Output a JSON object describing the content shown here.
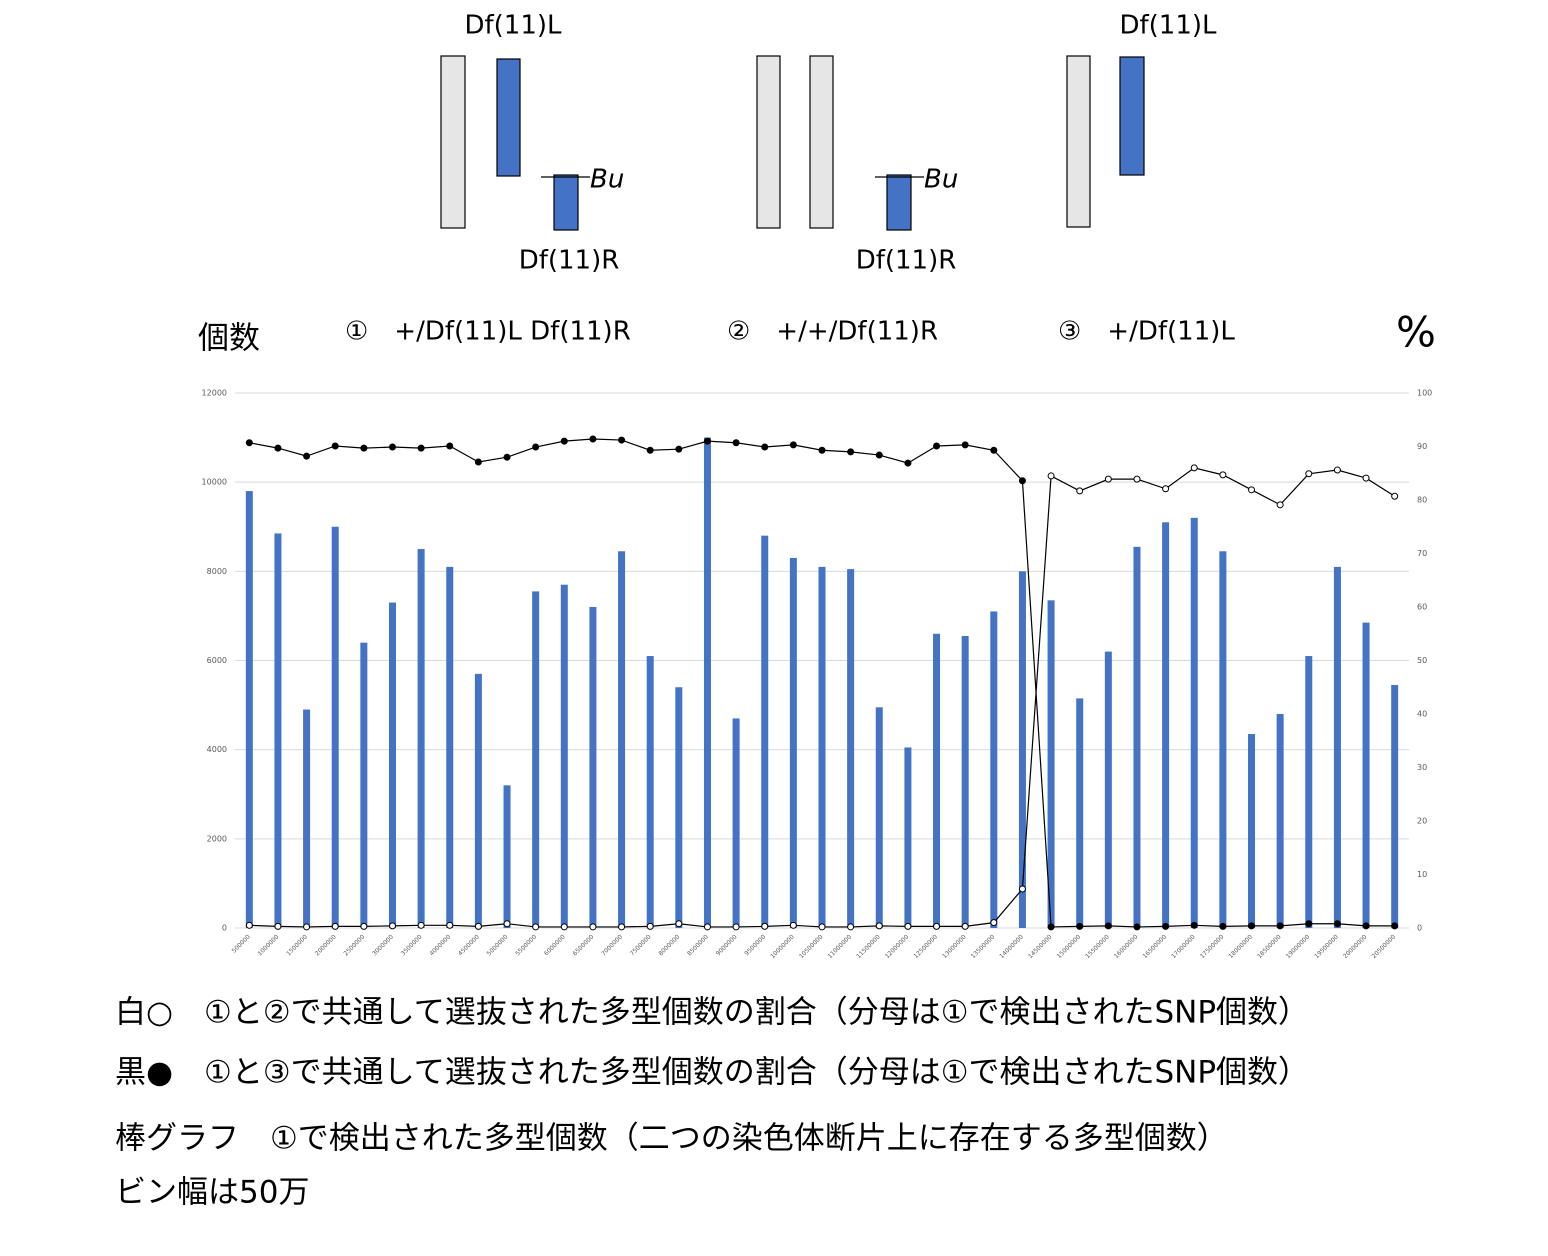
{
  "diagram": {
    "groups": [
      {
        "top_label": "Df(11)L",
        "marker": "Bu",
        "bottom_label": "Df(11)R"
      },
      {
        "marker": "Bu",
        "bottom_label": "Df(11)R"
      },
      {
        "top_label": "Df(11)L"
      }
    ]
  },
  "chart_data": {
    "type": "bar",
    "y_axis_label": "個数",
    "y2_axis_label": "%",
    "headers": [
      "①　+/Df(11)L Df(11)R",
      "②　+/+/Df(11)R",
      "③　+/Df(11)L"
    ],
    "categories": [
      "500000",
      "1000000",
      "1500000",
      "2000000",
      "2500000",
      "3000000",
      "3500000",
      "4000000",
      "4500000",
      "5000000",
      "5500000",
      "6000000",
      "6500000",
      "7000000",
      "7500000",
      "8000000",
      "8500000",
      "9000000",
      "9500000",
      "10000000",
      "10500000",
      "11000000",
      "11500000",
      "12000000",
      "12500000",
      "13000000",
      "13500000",
      "14000000",
      "14500000",
      "15000000",
      "15500000",
      "16000000",
      "16500000",
      "17000000",
      "17500000",
      "18000000",
      "18500000",
      "19000000",
      "19500000",
      "20000000",
      "20500000"
    ],
    "series": [
      {
        "type": "bar",
        "color": "#4472c4",
        "values": [
          9800,
          8850,
          4900,
          9000,
          6400,
          7300,
          8500,
          8100,
          5700,
          3200,
          7550,
          7700,
          7200,
          8450,
          6100,
          5400,
          11000,
          4700,
          8800,
          8300,
          8100,
          8050,
          4950,
          4050,
          6600,
          6550,
          7100,
          8000,
          7350,
          5150,
          6200,
          8550,
          9100,
          9200,
          8450,
          4350,
          4800,
          6100,
          8100,
          6850,
          5450
        ]
      },
      {
        "type": "line",
        "marker": "filled",
        "color": "#000000",
        "axis": "y2",
        "values": [
          90.7,
          89.7,
          88.2,
          90.1,
          89.7,
          89.9,
          89.7,
          90.1,
          87.1,
          88.0,
          89.9,
          91.0,
          91.4,
          91.2,
          89.3,
          89.5,
          91.0,
          90.7,
          89.9,
          90.3,
          89.3,
          89.0,
          88.4,
          86.9,
          90.1,
          90.3,
          89.3,
          83.6,
          0.2,
          0.3,
          0.4,
          0.2,
          0.3,
          0.5,
          0.3,
          0.4,
          0.4,
          0.8,
          0.8,
          0.4,
          0.4
        ]
      },
      {
        "type": "line",
        "marker": "hollow",
        "color": "#000000",
        "axis": "y2",
        "values": [
          0.5,
          0.3,
          0.2,
          0.3,
          0.3,
          0.4,
          0.5,
          0.5,
          0.3,
          0.8,
          0.2,
          0.2,
          0.2,
          0.2,
          0.3,
          0.8,
          0.2,
          0.2,
          0.3,
          0.5,
          0.2,
          0.2,
          0.4,
          0.3,
          0.3,
          0.3,
          1.0,
          7.3,
          84.5,
          81.7,
          83.9,
          83.9,
          82.1,
          86.0,
          84.7,
          81.9,
          79.1,
          84.9,
          85.6,
          84.1,
          80.7
        ]
      }
    ],
    "ylim": [
      0,
      12000
    ],
    "yticks": [
      0,
      2000,
      4000,
      6000,
      8000,
      10000,
      12000
    ],
    "y2lim": [
      0,
      100
    ],
    "y2ticks": [
      0,
      10,
      20,
      30,
      40,
      50,
      60,
      70,
      80,
      90,
      100
    ],
    "grid": true
  },
  "notes": [
    "白○　①と②で共通して選抜された多型個数の割合（分母は①で検出されたSNP個数）",
    "黒●　①と③で共通して選抜された多型個数の割合（分母は①で検出されたSNP個数）",
    "棒グラフ　①で検出された多型個数（二つの染色体断片上に存在する多型個数）",
    "ビン幅は50万"
  ]
}
